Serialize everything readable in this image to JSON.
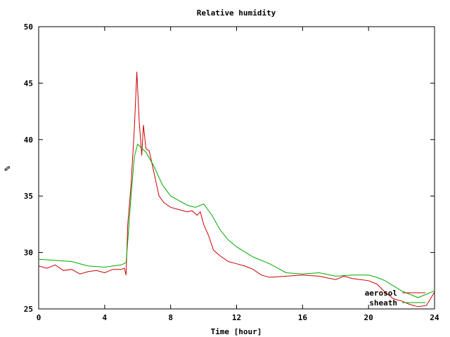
{
  "chart_data": {
    "type": "line",
    "title": "Relative humidity",
    "xlabel": "Time [hour]",
    "ylabel": "%",
    "xlim": [
      0,
      24
    ],
    "ylim": [
      25,
      50
    ],
    "x_ticks": [
      0,
      4,
      8,
      12,
      16,
      20,
      24
    ],
    "x_tick_labels": [
      "0",
      "4",
      "8",
      "12",
      "16",
      "20",
      "24"
    ],
    "y_ticks": [
      25,
      30,
      35,
      40,
      45,
      50
    ],
    "y_tick_labels": [
      "25",
      "30",
      "35",
      "40",
      "45",
      "50"
    ],
    "grid": false,
    "legend_position": "bottom-right",
    "series": [
      {
        "name": "aerosol",
        "color": "#cc0000",
        "x": [
          0,
          0.5,
          1,
          1.5,
          2,
          2.5,
          3,
          3.5,
          4,
          4.5,
          5,
          5.2,
          5.3,
          5.4,
          5.6,
          5.8,
          5.95,
          6.1,
          6.25,
          6.35,
          6.5,
          6.7,
          7,
          7.3,
          7.6,
          8,
          8.5,
          9,
          9.3,
          9.6,
          9.8,
          10,
          10.3,
          10.6,
          11,
          11.5,
          12,
          12.5,
          13,
          13.5,
          14,
          15,
          16,
          17,
          18,
          18.5,
          19,
          20,
          20.5,
          21,
          21.5,
          22,
          22.5,
          23,
          23.5,
          23.8,
          24
        ],
        "y": [
          28.8,
          28.6,
          28.9,
          28.4,
          28.5,
          28.1,
          28.3,
          28.4,
          28.2,
          28.5,
          28.5,
          28.6,
          28.0,
          32.5,
          36.0,
          41.0,
          46.0,
          41.5,
          38.6,
          41.3,
          39.2,
          39.0,
          37.0,
          35.0,
          34.4,
          34.0,
          33.8,
          33.6,
          33.7,
          33.3,
          33.6,
          32.5,
          31.5,
          30.2,
          29.7,
          29.2,
          29.0,
          28.8,
          28.5,
          28.0,
          27.8,
          27.9,
          28.0,
          27.9,
          27.6,
          27.9,
          27.7,
          27.5,
          27.2,
          26.5,
          25.9,
          25.7,
          25.4,
          25.2,
          25.3,
          26.0,
          26.5
        ]
      },
      {
        "name": "sheath",
        "color": "#00aa00",
        "x": [
          0,
          1,
          2,
          3,
          4,
          5,
          5.3,
          5.4,
          5.6,
          5.8,
          6.0,
          6.2,
          6.5,
          7,
          7.5,
          8,
          8.5,
          9,
          9.5,
          10,
          10.5,
          11,
          11.5,
          12,
          13,
          14,
          15,
          16,
          17,
          18,
          19,
          20,
          20.5,
          21,
          22,
          23,
          24
        ],
        "y": [
          29.4,
          29.3,
          29.2,
          28.8,
          28.7,
          28.9,
          29.1,
          31.0,
          35.0,
          38.5,
          39.6,
          39.3,
          38.9,
          37.6,
          36.0,
          35.0,
          34.6,
          34.2,
          34.0,
          34.3,
          33.3,
          32.0,
          31.1,
          30.5,
          29.6,
          29.0,
          28.2,
          28.1,
          28.2,
          27.9,
          28.0,
          28.0,
          27.8,
          27.5,
          26.6,
          26.0,
          26.6
        ]
      }
    ]
  }
}
